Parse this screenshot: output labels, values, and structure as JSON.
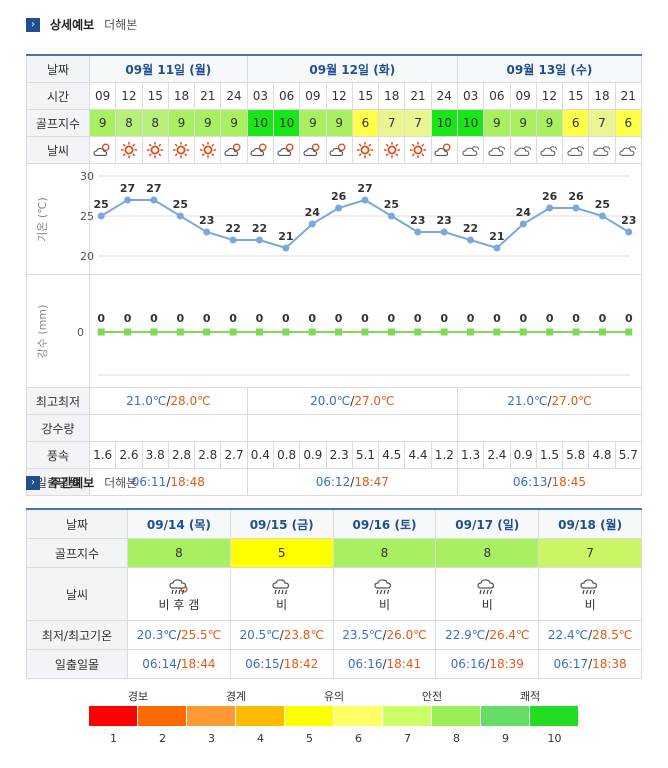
{
  "detail": {
    "title": "상세예보",
    "more": "더해본",
    "label_date": "날짜",
    "label_time": "시간",
    "label_golf": "골프지수",
    "label_weather": "날씨",
    "label_temp_axis": "기온 (℃)",
    "label_rain_axis": "강수 (mm)",
    "label_minmax": "최고최저",
    "label_precip": "강수량",
    "label_wind": "풍속",
    "label_sun": "일출일몰",
    "dates": [
      "09월 11일 (월)",
      "09월 12일 (화)",
      "09월 13일 (수)"
    ],
    "times": [
      "09",
      "12",
      "15",
      "18",
      "21",
      "24",
      "03",
      "06",
      "09",
      "12",
      "15",
      "18",
      "21",
      "24",
      "03",
      "06",
      "09",
      "12",
      "15",
      "18",
      "21"
    ],
    "golf": [
      "9",
      "8",
      "8",
      "9",
      "9",
      "9",
      "10",
      "10",
      "9",
      "9",
      "6",
      "7",
      "7",
      "10",
      "10",
      "9",
      "9",
      "9",
      "6",
      "7",
      "6"
    ],
    "weather_icons": [
      "partly-cloudy-icon",
      "sun-icon",
      "sun-icon",
      "sun-icon",
      "sun-icon",
      "partly-cloudy-icon",
      "partly-cloudy-icon",
      "partly-cloudy-icon",
      "partly-cloudy-icon",
      "partly-cloudy-icon",
      "sun-icon",
      "sun-icon",
      "sun-icon",
      "partly-cloudy-icon",
      "cloudy-icon",
      "cloudy-icon",
      "cloudy-icon",
      "cloudy-icon",
      "cloudy-icon",
      "cloudy-icon",
      "cloudy-icon"
    ],
    "minmax": [
      {
        "min": "21.0℃",
        "max": "28.0℃"
      },
      {
        "min": "20.0℃",
        "max": "27.0℃"
      },
      {
        "min": "21.0℃",
        "max": "27.0℃"
      }
    ],
    "wind": [
      "1.6",
      "2.6",
      "3.8",
      "2.8",
      "2.8",
      "2.7",
      "0.4",
      "0.8",
      "0.9",
      "2.3",
      "5.1",
      "4.5",
      "4.4",
      "1.2",
      "1.3",
      "2.4",
      "0.9",
      "1.5",
      "5.8",
      "4.8",
      "5.7"
    ],
    "sun": [
      {
        "rise": "06:11",
        "set": "18:48"
      },
      {
        "rise": "06:12",
        "set": "18:47"
      },
      {
        "rise": "06:13",
        "set": "18:45"
      }
    ]
  },
  "chart_data": [
    {
      "type": "line",
      "ylabel": "기온 (℃)",
      "ylim": [
        20,
        30
      ],
      "yticks": [
        20,
        25,
        30
      ],
      "x": [
        "09",
        "12",
        "15",
        "18",
        "21",
        "24",
        "03",
        "06",
        "09",
        "12",
        "15",
        "18",
        "21",
        "24",
        "03",
        "06",
        "09",
        "12",
        "15",
        "18",
        "21"
      ],
      "values": [
        25,
        27,
        27,
        25,
        23,
        22,
        22,
        21,
        24,
        26,
        27,
        25,
        23,
        23,
        22,
        21,
        24,
        26,
        26,
        25,
        23
      ],
      "grid": true,
      "color": "#7aa8dd"
    },
    {
      "type": "line",
      "ylabel": "강수 (mm)",
      "yticks": [
        0
      ],
      "x": [
        "09",
        "12",
        "15",
        "18",
        "21",
        "24",
        "03",
        "06",
        "09",
        "12",
        "15",
        "18",
        "21",
        "24",
        "03",
        "06",
        "09",
        "12",
        "15",
        "18",
        "21"
      ],
      "values": [
        0,
        0,
        0,
        0,
        0,
        0,
        0,
        0,
        0,
        0,
        0,
        0,
        0,
        0,
        0,
        0,
        0,
        0,
        0,
        0,
        0
      ],
      "color": "#7ed957"
    }
  ],
  "weekly": {
    "title": "주간예보",
    "more": "더해본",
    "label_date": "날짜",
    "label_golf": "골프지수",
    "label_weather": "날씨",
    "label_temp": "최저/최고기온",
    "label_sun": "일출일몰",
    "days": [
      {
        "date": "09/14 (목)",
        "golf": "8",
        "icon": "rain-sun-icon",
        "wx": "비 후 갬",
        "min": "20.3℃",
        "max": "25.5℃",
        "rise": "06:14",
        "set": "18:44",
        "color": "#a8ef62"
      },
      {
        "date": "09/15 (금)",
        "golf": "5",
        "icon": "rain-cloud-icon",
        "wx": "비",
        "min": "20.5℃",
        "max": "23.8℃",
        "rise": "06:15",
        "set": "18:42",
        "color": "#ffff00"
      },
      {
        "date": "09/16 (토)",
        "golf": "8",
        "icon": "rain-cloud-icon",
        "wx": "비",
        "min": "23.5℃",
        "max": "26.0℃",
        "rise": "06:16",
        "set": "18:41",
        "color": "#a8ef62"
      },
      {
        "date": "09/17 (일)",
        "golf": "8",
        "icon": "rain-cloud-icon",
        "wx": "비",
        "min": "22.9℃",
        "max": "26.4℃",
        "rise": "06:16",
        "set": "18:39",
        "color": "#a8ef62"
      },
      {
        "date": "09/18 (월)",
        "golf": "7",
        "icon": "rain-cloud-icon",
        "wx": "비",
        "min": "22.4℃",
        "max": "28.5℃",
        "rise": "06:17",
        "set": "18:38",
        "color": "#ccf566"
      }
    ]
  },
  "legend": {
    "labels": [
      "경보",
      "경계",
      "유의",
      "안전",
      "쾌적"
    ],
    "numbers": [
      "1",
      "2",
      "3",
      "4",
      "5",
      "6",
      "7",
      "8",
      "9",
      "10"
    ],
    "colors": [
      "#ff0000",
      "#ff6a00",
      "#ff9933",
      "#ffbb00",
      "#ffff00",
      "#ffff66",
      "#ccff66",
      "#99ee55",
      "#66dd66",
      "#22dd22"
    ]
  }
}
